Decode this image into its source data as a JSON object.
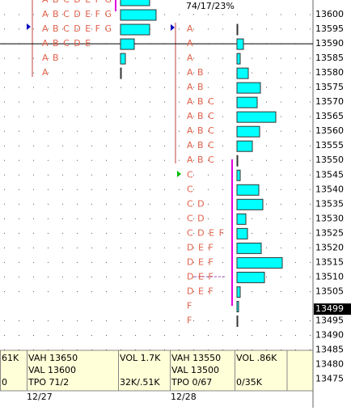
{
  "chart_data": {
    "type": "market-profile",
    "annotation": "74/17/23%",
    "ylim": [
      13471,
      13605
    ],
    "yticks": [
      13600,
      13595,
      13590,
      13585,
      13580,
      13575,
      13570,
      13565,
      13560,
      13555,
      13550,
      13545,
      13540,
      13535,
      13530,
      13525,
      13520,
      13515,
      13510,
      13505,
      13495,
      13490,
      13485,
      13480,
      13475
    ],
    "last_price": 13499,
    "line_price": 13590,
    "bar_color": "#00ffff",
    "profiles": [
      {
        "date": "12/27",
        "prices": [
          13605,
          13600,
          13595,
          13590,
          13585,
          13580
        ],
        "letters": [
          "A B C D E F G",
          "A B C D E F G",
          "A B C D E F G",
          "A B C D E",
          "A B",
          "A"
        ],
        "volumes": [
          36,
          44,
          36,
          17,
          6,
          1
        ]
      },
      {
        "date": "12/28",
        "prices": [
          13595,
          13590,
          13585,
          13580,
          13575,
          13570,
          13565,
          13560,
          13555,
          13550,
          13545,
          13540,
          13535,
          13530,
          13525,
          13520,
          13515,
          13510,
          13505,
          13500,
          13495
        ],
        "letters": [
          "A",
          "A",
          "A",
          "A B",
          "A B",
          "A B C",
          "A B C",
          "A B C",
          "A B C",
          "A B C",
          "C",
          "C",
          "C D",
          "C D",
          "C D E F",
          "D E F",
          "D E F",
          "D E F",
          "D E F",
          "F",
          "F"
        ],
        "volumes": [
          1,
          8,
          4,
          14,
          29,
          25,
          48,
          28,
          19,
          1,
          4,
          27,
          32,
          11,
          13,
          30,
          56,
          34,
          4,
          2,
          1
        ]
      }
    ],
    "info_boxes": [
      [
        "61K",
        "0"
      ],
      [
        "VAH 13650",
        "VAL 13600",
        "TPO 71/2"
      ],
      [
        "VOL 1.7K",
        "32K/.51K"
      ],
      [
        "VAH 13550",
        "VAL 13500",
        "TPO 0/67"
      ],
      [
        "VOL .86K",
        "0/35K"
      ]
    ]
  }
}
